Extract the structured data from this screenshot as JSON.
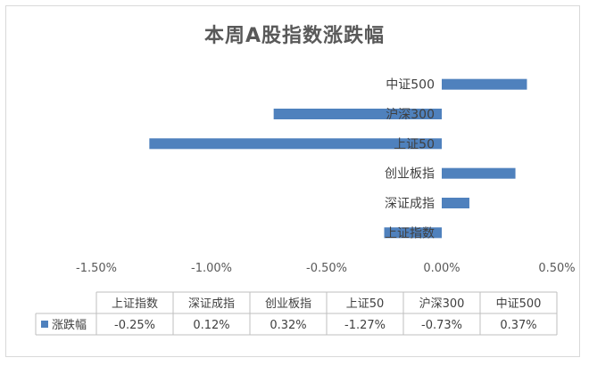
{
  "chart_data": {
    "type": "bar",
    "orientation": "horizontal",
    "title": "本周A股指数涨跌幅",
    "categories": [
      "上证指数",
      "深证成指",
      "创业板指",
      "上证50",
      "沪深300",
      "中证500"
    ],
    "series": [
      {
        "name": "涨跌幅",
        "values": [
          -0.25,
          0.12,
          0.32,
          -1.27,
          -0.73,
          0.37
        ],
        "value_labels": [
          "-0.25%",
          "0.12%",
          "0.32%",
          "-1.27%",
          "-0.73%",
          "0.37%"
        ],
        "color": "#4f81bd"
      }
    ],
    "xlim": [
      -1.5,
      0.5
    ],
    "x_ticks": [
      -1.5,
      -1.0,
      -0.5,
      0.0,
      0.5
    ],
    "x_tick_labels": [
      "-1.50%",
      "-1.00%",
      "-0.50%",
      "0.00%",
      "0.50%"
    ],
    "grid": false,
    "legend": "data-table"
  }
}
